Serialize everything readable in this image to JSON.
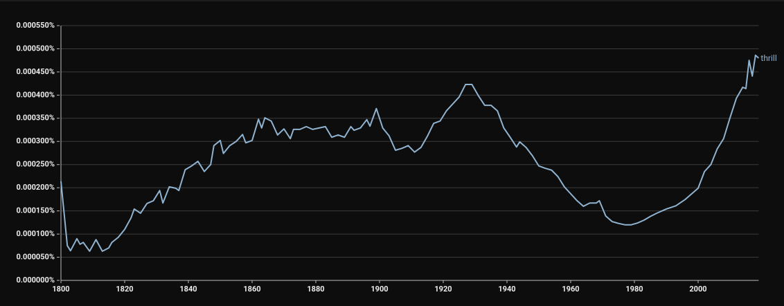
{
  "chart_data": {
    "type": "line",
    "xlim": [
      1800,
      2019
    ],
    "xticks": [
      1800,
      1820,
      1840,
      1860,
      1880,
      1900,
      1920,
      1940,
      1960,
      1980,
      2000
    ],
    "ylim": [
      0,
      0.00055
    ],
    "yticks": [
      {
        "value": 0,
        "label": "0.000000%"
      },
      {
        "value": 5e-05,
        "label": "0.000050%"
      },
      {
        "value": 0.0001,
        "label": "0.000100%"
      },
      {
        "value": 0.00015,
        "label": "0.000150%"
      },
      {
        "value": 0.0002,
        "label": "0.000200%"
      },
      {
        "value": 0.00025,
        "label": "0.000250%"
      },
      {
        "value": 0.0003,
        "label": "0.000300%"
      },
      {
        "value": 0.00035,
        "label": "0.000350%"
      },
      {
        "value": 0.0004,
        "label": "0.000400%"
      },
      {
        "value": 0.00045,
        "label": "0.000450%"
      },
      {
        "value": 0.0005,
        "label": "0.000500%"
      },
      {
        "value": 0.00055,
        "label": "0.000550%"
      }
    ],
    "grid": true,
    "x": [
      1800,
      1802,
      1803,
      1805,
      1806,
      1807,
      1809,
      1811,
      1813,
      1815,
      1816,
      1818,
      1820,
      1822,
      1823,
      1825,
      1827,
      1829,
      1831,
      1832,
      1834,
      1836,
      1837,
      1839,
      1841,
      1843,
      1845,
      1847,
      1848,
      1850,
      1851,
      1853,
      1855,
      1857,
      1858,
      1860,
      1862,
      1863,
      1864,
      1866,
      1868,
      1870,
      1872,
      1873,
      1875,
      1877,
      1879,
      1881,
      1883,
      1885,
      1887,
      1889,
      1891,
      1892,
      1894,
      1896,
      1897,
      1899,
      1901,
      1903,
      1905,
      1907,
      1909,
      1911,
      1913,
      1915,
      1917,
      1919,
      1921,
      1923,
      1925,
      1927,
      1929,
      1931,
      1933,
      1935,
      1937,
      1939,
      1941,
      1943,
      1944,
      1946,
      1948,
      1950,
      1952,
      1954,
      1956,
      1958,
      1960,
      1962,
      1964,
      1966,
      1968,
      1969,
      1971,
      1973,
      1975,
      1977,
      1979,
      1981,
      1983,
      1985,
      1987,
      1990,
      1993,
      1996,
      1998,
      2000,
      2002,
      2004,
      2006,
      2008,
      2010,
      2012,
      2014,
      2015,
      2016,
      2017,
      2018,
      2019
    ],
    "series": [
      {
        "name": "thrill",
        "color": "#8fb3d0",
        "values": [
          0.000214,
          7.5e-05,
          6.4e-05,
          9e-05,
          7.8e-05,
          8.2e-05,
          6.3e-05,
          8.8e-05,
          6.3e-05,
          7e-05,
          8.2e-05,
          9.3e-05,
          0.00011,
          0.000135,
          0.000154,
          0.000145,
          0.000166,
          0.000172,
          0.000194,
          0.000167,
          0.000202,
          0.000199,
          0.000194,
          0.000239,
          0.000247,
          0.000257,
          0.000235,
          0.00025,
          0.000291,
          0.000302,
          0.000274,
          0.000291,
          0.0003,
          0.000315,
          0.000297,
          0.000302,
          0.000348,
          0.000329,
          0.000351,
          0.000344,
          0.000314,
          0.000327,
          0.000306,
          0.000326,
          0.000326,
          0.000332,
          0.000326,
          0.000329,
          0.000332,
          0.000309,
          0.000314,
          0.000309,
          0.000332,
          0.000324,
          0.000329,
          0.000347,
          0.000333,
          0.000371,
          0.000329,
          0.000312,
          0.000281,
          0.000285,
          0.000291,
          0.000277,
          0.000287,
          0.000311,
          0.000339,
          0.000344,
          0.000366,
          0.000381,
          0.000396,
          0.000423,
          0.000423,
          0.000399,
          0.000378,
          0.000378,
          0.000366,
          0.000329,
          0.000309,
          0.000288,
          0.000299,
          0.000287,
          0.000269,
          0.000247,
          0.000242,
          0.000238,
          0.000224,
          0.000202,
          0.000187,
          0.000172,
          0.00016,
          0.000167,
          0.000167,
          0.000172,
          0.000139,
          0.000127,
          0.000123,
          0.00012,
          0.00012,
          0.000124,
          0.00013,
          0.000138,
          0.000145,
          0.000154,
          0.000161,
          0.000175,
          0.000187,
          0.000199,
          0.000235,
          0.00025,
          0.000284,
          0.000306,
          0.000351,
          0.000393,
          0.000417,
          0.000414,
          0.000475,
          0.000441,
          0.000486,
          0.00048
        ]
      }
    ]
  }
}
